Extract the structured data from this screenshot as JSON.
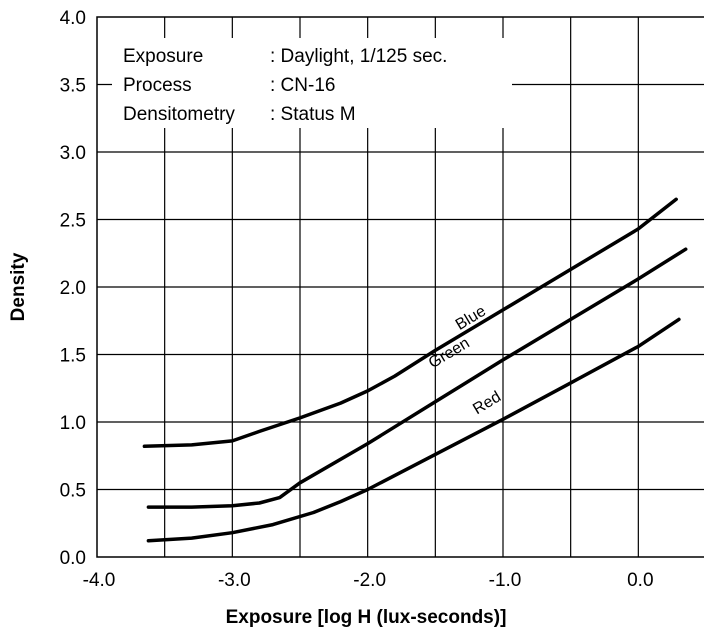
{
  "chart_data": {
    "type": "line",
    "xlabel": "Exposure [log H (lux-seconds)]",
    "ylabel": "Density",
    "xlim": [
      -4.0,
      0.5
    ],
    "ylim": [
      0.0,
      4.0
    ],
    "grid": true,
    "x_ticks": [
      -4.0,
      -3.5,
      -3.0,
      -2.5,
      -2.0,
      -1.5,
      -1.0,
      -0.5,
      0.0
    ],
    "x_tick_labels": [
      "-4.0",
      "",
      "-3.0",
      "",
      "-2.0",
      "",
      "-1.0",
      "",
      "0.0"
    ],
    "y_ticks": [
      0.0,
      0.5,
      1.0,
      1.5,
      2.0,
      2.5,
      3.0,
      3.5,
      4.0
    ],
    "y_tick_labels": [
      "0.0",
      "0.5",
      "1.0",
      "1.5",
      "2.0",
      "2.5",
      "3.0",
      "3.5",
      "4.0"
    ],
    "annotation": [
      {
        "key": "Exposure",
        "value": ": Daylight, 1/125 sec."
      },
      {
        "key": "Process",
        "value": ": CN-16"
      },
      {
        "key": "Densitometry",
        "value": ": Status M"
      }
    ],
    "series": [
      {
        "name": "Blue",
        "x": [
          -3.65,
          -3.3,
          -3.0,
          -2.8,
          -2.5,
          -2.2,
          -2.0,
          -1.8,
          -1.5,
          -1.0,
          -0.5,
          0.0,
          0.28
        ],
        "y": [
          0.82,
          0.83,
          0.86,
          0.93,
          1.03,
          1.14,
          1.23,
          1.34,
          1.53,
          1.83,
          2.13,
          2.43,
          2.65
        ]
      },
      {
        "name": "Green",
        "x": [
          -3.62,
          -3.3,
          -3.0,
          -2.8,
          -2.65,
          -2.5,
          -2.0,
          -1.5,
          -1.0,
          -0.5,
          0.0,
          0.35
        ],
        "y": [
          0.37,
          0.37,
          0.38,
          0.4,
          0.44,
          0.55,
          0.84,
          1.15,
          1.46,
          1.76,
          2.06,
          2.28
        ]
      },
      {
        "name": "Red",
        "x": [
          -3.62,
          -3.3,
          -3.0,
          -2.7,
          -2.4,
          -2.2,
          -2.0,
          -1.5,
          -1.0,
          -0.5,
          0.0,
          0.3
        ],
        "y": [
          0.12,
          0.14,
          0.18,
          0.24,
          0.33,
          0.41,
          0.5,
          0.76,
          1.02,
          1.29,
          1.56,
          1.76
        ]
      }
    ]
  }
}
